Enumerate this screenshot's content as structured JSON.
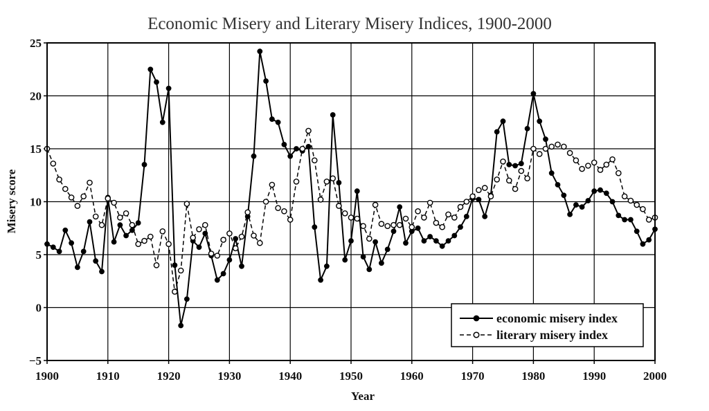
{
  "chart_data": {
    "type": "line",
    "title": "Economic Misery and Literary Misery Indices, 1900-2000",
    "xlabel": "Year",
    "ylabel": "Misery score",
    "xlim": [
      1900,
      2000
    ],
    "ylim": [
      -5,
      25
    ],
    "xticks": [
      "1900",
      "1910",
      "1920",
      "1930",
      "1940",
      "1950",
      "1960",
      "1970",
      "1980",
      "1990",
      "2000"
    ],
    "yticks": [
      "25",
      "20",
      "15",
      "10",
      "5",
      "0",
      "−5"
    ],
    "grid": true,
    "legend_position": "bottom-right",
    "series": [
      {
        "name": "economic misery index",
        "style": "solid-filled-markers",
        "color": "#000000",
        "x": [
          1900,
          1901,
          1902,
          1903,
          1904,
          1905,
          1906,
          1907,
          1908,
          1909,
          1910,
          1911,
          1912,
          1913,
          1914,
          1915,
          1916,
          1917,
          1918,
          1919,
          1920,
          1921,
          1922,
          1923,
          1924,
          1925,
          1926,
          1927,
          1928,
          1929,
          1930,
          1931,
          1932,
          1933,
          1934,
          1935,
          1936,
          1937,
          1938,
          1939,
          1940,
          1941,
          1942,
          1943,
          1944,
          1945,
          1946,
          1947,
          1948,
          1949,
          1950,
          1951,
          1952,
          1953,
          1954,
          1955,
          1956,
          1957,
          1958,
          1959,
          1960,
          1961,
          1962,
          1963,
          1964,
          1965,
          1966,
          1967,
          1968,
          1969,
          1970,
          1971,
          1972,
          1973,
          1974,
          1975,
          1976,
          1977,
          1978,
          1979,
          1980,
          1981,
          1982,
          1983,
          1984,
          1985,
          1986,
          1987,
          1988,
          1989,
          1990,
          1991,
          1992,
          1993,
          1994,
          1995,
          1996,
          1997,
          1998,
          1999,
          2000
        ],
        "values": [
          6.0,
          5.7,
          5.3,
          7.3,
          6.1,
          3.8,
          5.3,
          8.1,
          4.4,
          3.4,
          10.4,
          6.2,
          7.8,
          6.8,
          7.3,
          8.0,
          13.5,
          22.5,
          21.3,
          17.5,
          20.7,
          4.0,
          -1.7,
          0.8,
          6.3,
          5.7,
          7.0,
          4.9,
          2.6,
          3.2,
          4.5,
          6.5,
          3.9,
          8.6,
          14.3,
          24.2,
          21.4,
          17.8,
          17.5,
          15.4,
          14.3,
          15.0,
          14.8,
          15.2,
          7.6,
          2.6,
          3.9,
          18.2,
          11.8,
          4.5,
          6.3,
          11.0,
          4.8,
          3.6,
          6.2,
          4.2,
          5.5,
          7.2,
          9.5,
          6.1,
          7.2,
          7.5,
          6.3,
          6.7,
          6.3,
          5.8,
          6.3,
          6.8,
          7.6,
          8.6,
          10.3,
          10.2,
          8.6,
          10.6,
          16.6,
          17.6,
          13.5,
          13.4,
          13.6,
          16.9,
          20.2,
          17.6,
          15.9,
          12.7,
          11.6,
          10.6,
          8.8,
          9.7,
          9.5,
          10.1,
          11.0,
          11.1,
          10.8,
          10.0,
          8.7,
          8.3,
          8.3,
          7.2,
          6.0,
          6.4,
          7.4
        ]
      },
      {
        "name": "literary misery index",
        "style": "dashed-open-markers",
        "color": "#000000",
        "x": [
          1900,
          1901,
          1902,
          1903,
          1904,
          1905,
          1906,
          1907,
          1908,
          1909,
          1910,
          1911,
          1912,
          1913,
          1914,
          1915,
          1916,
          1917,
          1918,
          1919,
          1920,
          1921,
          1922,
          1923,
          1924,
          1925,
          1926,
          1927,
          1928,
          1929,
          1930,
          1931,
          1932,
          1933,
          1934,
          1935,
          1936,
          1937,
          1938,
          1939,
          1940,
          1941,
          1942,
          1943,
          1944,
          1945,
          1946,
          1947,
          1948,
          1949,
          1950,
          1951,
          1952,
          1953,
          1954,
          1955,
          1956,
          1957,
          1958,
          1959,
          1960,
          1961,
          1962,
          1963,
          1964,
          1965,
          1966,
          1967,
          1968,
          1969,
          1970,
          1971,
          1972,
          1973,
          1974,
          1975,
          1976,
          1977,
          1978,
          1979,
          1980,
          1981,
          1982,
          1983,
          1984,
          1985,
          1986,
          1987,
          1988,
          1989,
          1990,
          1991,
          1992,
          1993,
          1994,
          1995,
          1996,
          1997,
          1998,
          1999,
          2000
        ],
        "values": [
          15.0,
          13.6,
          12.1,
          11.2,
          10.4,
          9.6,
          10.5,
          11.8,
          8.6,
          7.8,
          10.3,
          9.9,
          8.5,
          8.9,
          7.8,
          6.0,
          6.3,
          6.7,
          4.0,
          7.2,
          6.0,
          1.5,
          3.5,
          9.8,
          6.6,
          7.4,
          7.8,
          5.1,
          4.9,
          6.4,
          7.0,
          5.6,
          6.7,
          9.0,
          6.8,
          6.1,
          10.0,
          11.6,
          9.4,
          9.1,
          8.3,
          11.9,
          15.0,
          16.7,
          13.9,
          10.2,
          11.9,
          12.2,
          9.6,
          8.9,
          8.5,
          8.4,
          7.7,
          6.5,
          9.7,
          7.9,
          7.7,
          7.8,
          7.8,
          8.4,
          7.6,
          9.1,
          8.5,
          9.9,
          8.0,
          7.6,
          8.8,
          8.5,
          9.5,
          10.0,
          10.5,
          11.1,
          11.3,
          10.5,
          12.1,
          13.8,
          12.0,
          11.2,
          12.9,
          12.2,
          15.0,
          14.5,
          15.0,
          15.2,
          15.4,
          15.2,
          14.6,
          13.9,
          13.1,
          13.4,
          13.7,
          13.0,
          13.5,
          14.0,
          12.7,
          10.5,
          10.1,
          9.7,
          9.3,
          8.3,
          8.5
        ]
      }
    ]
  }
}
